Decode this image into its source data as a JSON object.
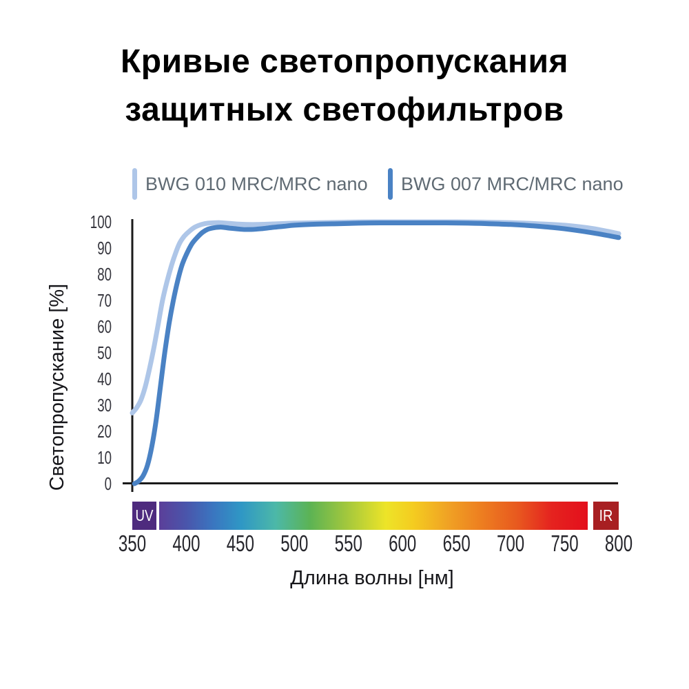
{
  "header": {
    "line1": "Кривые светопропускания",
    "line2": "защитных светофильтров"
  },
  "legend": {
    "items": [
      {
        "label": "BWG 010 MRC/MRC nano",
        "color": "#aec6e8"
      },
      {
        "label": "BWG 007 MRC/MRC nano",
        "color": "#4a82c4"
      }
    ]
  },
  "chart_data": {
    "type": "line",
    "title": "Кривые светопропускания защитных светофильтров",
    "xlabel": "Длина волны [нм]",
    "ylabel": "Светопропускание [%]",
    "xlim": [
      350,
      800
    ],
    "ylim": [
      0,
      100
    ],
    "x_ticks": [
      350,
      400,
      450,
      500,
      550,
      600,
      650,
      700,
      750,
      800
    ],
    "y_ticks": [
      0,
      10,
      20,
      30,
      40,
      50,
      60,
      70,
      80,
      90,
      100
    ],
    "grid": false,
    "legend_position": "top",
    "series": [
      {
        "name": "BWG 010 MRC/MRC nano",
        "color": "#aec6e8",
        "points": [
          [
            350,
            27
          ],
          [
            354,
            29
          ],
          [
            358,
            32
          ],
          [
            362,
            37
          ],
          [
            366,
            44
          ],
          [
            370,
            52
          ],
          [
            374,
            61
          ],
          [
            378,
            70
          ],
          [
            382,
            77
          ],
          [
            386,
            83
          ],
          [
            390,
            88
          ],
          [
            394,
            92
          ],
          [
            398,
            94.5
          ],
          [
            403,
            96.5
          ],
          [
            408,
            98
          ],
          [
            414,
            99
          ],
          [
            420,
            99.5
          ],
          [
            430,
            99.7
          ],
          [
            440,
            99.4
          ],
          [
            450,
            99.1
          ],
          [
            465,
            99
          ],
          [
            480,
            99.2
          ],
          [
            500,
            99.5
          ],
          [
            525,
            99.7
          ],
          [
            550,
            99.9
          ],
          [
            575,
            100
          ],
          [
            600,
            100
          ],
          [
            625,
            100
          ],
          [
            650,
            100
          ],
          [
            675,
            99.9
          ],
          [
            700,
            99.7
          ],
          [
            725,
            99.3
          ],
          [
            750,
            98.7
          ],
          [
            775,
            97.5
          ],
          [
            800,
            95.5
          ]
        ]
      },
      {
        "name": "BWG 007 MRC/MRC nano",
        "color": "#4a82c4",
        "points": [
          [
            352,
            0
          ],
          [
            356,
            1
          ],
          [
            360,
            3
          ],
          [
            364,
            7
          ],
          [
            368,
            14
          ],
          [
            372,
            24
          ],
          [
            376,
            37
          ],
          [
            380,
            50
          ],
          [
            384,
            61
          ],
          [
            388,
            70
          ],
          [
            392,
            77.5
          ],
          [
            396,
            83.5
          ],
          [
            400,
            87.5
          ],
          [
            405,
            91.5
          ],
          [
            410,
            94
          ],
          [
            415,
            96
          ],
          [
            420,
            97.2
          ],
          [
            426,
            97.8
          ],
          [
            432,
            98
          ],
          [
            440,
            97.6
          ],
          [
            450,
            97.2
          ],
          [
            460,
            97.1
          ],
          [
            470,
            97.4
          ],
          [
            480,
            97.9
          ],
          [
            490,
            98.3
          ],
          [
            500,
            98.7
          ],
          [
            520,
            99.1
          ],
          [
            540,
            99.3
          ],
          [
            560,
            99.5
          ],
          [
            580,
            99.6
          ],
          [
            600,
            99.6
          ],
          [
            620,
            99.6
          ],
          [
            640,
            99.6
          ],
          [
            660,
            99.5
          ],
          [
            680,
            99.3
          ],
          [
            700,
            99
          ],
          [
            720,
            98.5
          ],
          [
            740,
            97.8
          ],
          [
            760,
            96.8
          ],
          [
            780,
            95.5
          ],
          [
            800,
            94
          ]
        ]
      }
    ],
    "spectrum_bar": {
      "uv_label": "UV",
      "ir_label": "IR",
      "uv_color": "#4e2b7e",
      "ir_color": "#a81f22",
      "gradient_stops": [
        {
          "offset": 0,
          "color": "#5b3f99"
        },
        {
          "offset": 0.063,
          "color": "#4a55ab"
        },
        {
          "offset": 0.127,
          "color": "#3a76c0"
        },
        {
          "offset": 0.191,
          "color": "#2f97c5"
        },
        {
          "offset": 0.272,
          "color": "#4cb8a8"
        },
        {
          "offset": 0.352,
          "color": "#5cb354"
        },
        {
          "offset": 0.432,
          "color": "#9ec63e"
        },
        {
          "offset": 0.529,
          "color": "#ede428"
        },
        {
          "offset": 0.593,
          "color": "#f4cc20"
        },
        {
          "offset": 0.674,
          "color": "#f0a224"
        },
        {
          "offset": 0.754,
          "color": "#ed7d20"
        },
        {
          "offset": 0.834,
          "color": "#e85a1f"
        },
        {
          "offset": 0.915,
          "color": "#e5231f"
        },
        {
          "offset": 1,
          "color": "#e30f1c"
        }
      ]
    },
    "axis_color": "#1a1a1a"
  }
}
